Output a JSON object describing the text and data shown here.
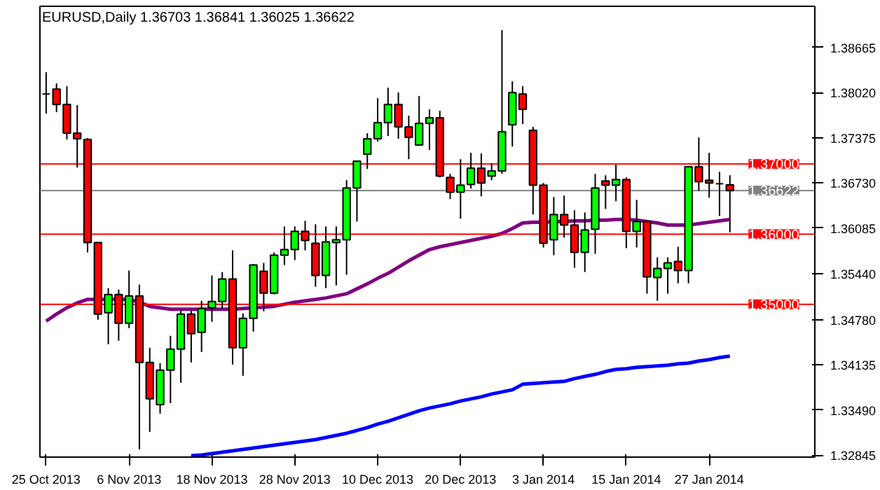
{
  "chart_data": {
    "type": "candlestick",
    "title": "EURUSD,Daily 1.36703 1.36841 1.36025 1.36622",
    "categories": [
      "25 Oct 2013",
      null,
      null,
      null,
      null,
      null,
      null,
      null,
      "6 Nov 2013",
      null,
      null,
      null,
      null,
      null,
      null,
      null,
      "18 Nov 2013",
      null,
      null,
      null,
      null,
      null,
      null,
      null,
      "28 Nov 2013",
      null,
      null,
      null,
      null,
      null,
      null,
      null,
      "10 Dec 2013",
      null,
      null,
      null,
      null,
      null,
      null,
      null,
      "20 Dec 2013",
      null,
      null,
      null,
      null,
      null,
      null,
      null,
      "3 Jan 2014",
      null,
      null,
      null,
      null,
      null,
      null,
      null,
      "15 Jan 2014",
      null,
      null,
      null,
      null,
      null,
      null,
      null,
      "27 Jan 2014",
      null,
      null
    ],
    "ohlc": [
      [
        1.38,
        1.3831,
        1.3772,
        1.38
      ],
      [
        1.3807,
        1.3815,
        1.3774,
        1.3785
      ],
      [
        1.3785,
        1.3811,
        1.3735,
        1.3744
      ],
      [
        1.3744,
        1.3784,
        1.3695,
        1.3736
      ],
      [
        1.3735,
        1.3737,
        1.3574,
        1.3588
      ],
      [
        1.3588,
        1.3588,
        1.3478,
        1.3486
      ],
      [
        1.3488,
        1.3523,
        1.3443,
        1.3514
      ],
      [
        1.3514,
        1.3521,
        1.3448,
        1.3473
      ],
      [
        1.3473,
        1.3548,
        1.3466,
        1.3512
      ],
      [
        1.3512,
        1.3528,
        1.3293,
        1.3417
      ],
      [
        1.3417,
        1.3438,
        1.3318,
        1.3365
      ],
      [
        1.3357,
        1.3416,
        1.3344,
        1.3406
      ],
      [
        1.3406,
        1.3455,
        1.3359,
        1.3436
      ],
      [
        1.3436,
        1.3492,
        1.3388,
        1.3486
      ],
      [
        1.3486,
        1.3491,
        1.3417,
        1.3458
      ],
      [
        1.346,
        1.3505,
        1.3432,
        1.3494
      ],
      [
        1.3495,
        1.3541,
        1.3475,
        1.3504
      ],
      [
        1.3504,
        1.3546,
        1.3494,
        1.3536
      ],
      [
        1.3536,
        1.3577,
        1.3414,
        1.3438
      ],
      [
        1.3438,
        1.3487,
        1.3398,
        1.348
      ],
      [
        1.348,
        1.3557,
        1.3461,
        1.3556
      ],
      [
        1.3547,
        1.3559,
        1.349,
        1.3516
      ],
      [
        1.3516,
        1.3574,
        1.3514,
        1.357
      ],
      [
        1.357,
        1.3611,
        1.3556,
        1.3578
      ],
      [
        1.3578,
        1.3611,
        1.3563,
        1.3604
      ],
      [
        1.3604,
        1.3619,
        1.3577,
        1.3591
      ],
      [
        1.3587,
        1.3614,
        1.3525,
        1.3541
      ],
      [
        1.3541,
        1.3611,
        1.3523,
        1.3589
      ],
      [
        1.3588,
        1.3611,
        1.3527,
        1.3592
      ],
      [
        1.3592,
        1.3677,
        1.3542,
        1.3666
      ],
      [
        1.3666,
        1.3704,
        1.3618,
        1.3704
      ],
      [
        1.3714,
        1.3744,
        1.3693,
        1.3736
      ],
      [
        1.3736,
        1.3794,
        1.3732,
        1.3759
      ],
      [
        1.3759,
        1.3809,
        1.374,
        1.3785
      ],
      [
        1.3785,
        1.3802,
        1.3736,
        1.3753
      ],
      [
        1.3753,
        1.3769,
        1.3707,
        1.3738
      ],
      [
        1.3727,
        1.3797,
        1.3727,
        1.3758
      ],
      [
        1.3758,
        1.3778,
        1.372,
        1.3766
      ],
      [
        1.3766,
        1.3776,
        1.3681,
        1.3683
      ],
      [
        1.3681,
        1.3686,
        1.365,
        1.366
      ],
      [
        1.366,
        1.3707,
        1.3622,
        1.367
      ],
      [
        1.3671,
        1.3716,
        1.3665,
        1.3694
      ],
      [
        1.3694,
        1.3715,
        1.3654,
        1.3673
      ],
      [
        1.3683,
        1.3701,
        1.3677,
        1.369
      ],
      [
        1.369,
        1.3891,
        1.3686,
        1.3746
      ],
      [
        1.3756,
        1.3818,
        1.3725,
        1.3802
      ],
      [
        1.38,
        1.3811,
        1.3757,
        1.3778
      ],
      [
        1.3748,
        1.3753,
        1.3628,
        1.367
      ],
      [
        1.367,
        1.3673,
        1.3581,
        1.3587
      ],
      [
        1.3592,
        1.3653,
        1.357,
        1.3628
      ],
      [
        1.3628,
        1.3655,
        1.3595,
        1.3613
      ],
      [
        1.3613,
        1.3634,
        1.3552,
        1.3574
      ],
      [
        1.3574,
        1.3631,
        1.3546,
        1.3606
      ],
      [
        1.3607,
        1.3686,
        1.3572,
        1.3666
      ],
      [
        1.3676,
        1.3684,
        1.3636,
        1.367
      ],
      [
        1.367,
        1.3699,
        1.3647,
        1.3678
      ],
      [
        1.3678,
        1.3681,
        1.358,
        1.3604
      ],
      [
        1.3604,
        1.3649,
        1.3581,
        1.3618
      ],
      [
        1.3618,
        1.3619,
        1.3515,
        1.3539
      ],
      [
        1.3538,
        1.3567,
        1.3505,
        1.3551
      ],
      [
        1.3551,
        1.3567,
        1.3515,
        1.3559
      ],
      [
        1.3561,
        1.3582,
        1.353,
        1.3548
      ],
      [
        1.3548,
        1.3696,
        1.353,
        1.3696
      ],
      [
        1.3696,
        1.3738,
        1.3662,
        1.3675
      ],
      [
        1.3677,
        1.3716,
        1.3652,
        1.3673
      ],
      [
        1.3672,
        1.3689,
        1.3626,
        1.3672
      ],
      [
        1.36703,
        1.36841,
        1.36025,
        1.36622
      ]
    ],
    "colors": [
      "#000000",
      "#ff0000",
      "#ff0000",
      "#ff0000",
      "#ff0000",
      "#ff0000",
      "#00ff00",
      "#ff0000",
      "#00ff00",
      "#ff0000",
      "#ff0000",
      "#00ff00",
      "#00ff00",
      "#00ff00",
      "#ff0000",
      "#00ff00",
      "#00ff00",
      "#00ff00",
      "#ff0000",
      "#00ff00",
      "#00ff00",
      "#ff0000",
      "#00ff00",
      "#00ff00",
      "#00ff00",
      "#ff0000",
      "#ff0000",
      "#00ff00",
      "#00ff00",
      "#00ff00",
      "#00ff00",
      "#00ff00",
      "#00ff00",
      "#00ff00",
      "#ff0000",
      "#ff0000",
      "#00ff00",
      "#00ff00",
      "#ff0000",
      "#ff0000",
      "#00ff00",
      "#00ff00",
      "#ff0000",
      "#00ff00",
      "#00ff00",
      "#00ff00",
      "#ff0000",
      "#ff0000",
      "#ff0000",
      "#00ff00",
      "#ff0000",
      "#ff0000",
      "#00ff00",
      "#00ff00",
      "#ff0000",
      "#00ff00",
      "#ff0000",
      "#00ff00",
      "#ff0000",
      "#00ff00",
      "#00ff00",
      "#ff0000",
      "#00ff00",
      "#ff0000",
      "#ff0000",
      "#000000",
      "#ff0000"
    ],
    "series": [
      {
        "type": "line",
        "color": "#800080",
        "values": [
          1.3476,
          1.3486,
          1.3495,
          1.3502,
          1.3507,
          1.3507,
          1.3507,
          1.3507,
          1.3507,
          1.3503,
          1.3497,
          1.3495,
          1.3493,
          1.3493,
          1.3493,
          1.3493,
          1.3493,
          1.3493,
          1.3493,
          1.3494,
          1.3495,
          1.3496,
          1.3497,
          1.35,
          1.3503,
          1.3505,
          1.3507,
          1.3509,
          1.3512,
          1.3515,
          1.3522,
          1.3529,
          1.3537,
          1.3544,
          1.3553,
          1.3562,
          1.357,
          1.3578,
          1.3582,
          1.3585,
          1.3588,
          1.3591,
          1.3594,
          1.3597,
          1.3601,
          1.3608,
          1.3616,
          1.3617,
          1.3617,
          1.3618,
          1.3618,
          1.3619,
          1.3619,
          1.362,
          1.362,
          1.3621,
          1.3621,
          1.362,
          1.3618,
          1.3616,
          1.3613,
          1.3613,
          1.3613,
          1.3615,
          1.3617,
          1.3619,
          1.3621
        ]
      },
      {
        "type": "line",
        "color": "#0000ff",
        "values": [
          null,
          null,
          null,
          null,
          null,
          null,
          null,
          null,
          null,
          null,
          null,
          null,
          null,
          null,
          1.3284,
          1.3285,
          1.3287,
          1.3289,
          1.3291,
          1.3293,
          1.3295,
          1.3297,
          1.3299,
          1.3301,
          1.3303,
          1.3305,
          1.3307,
          1.331,
          1.3313,
          1.3316,
          1.332,
          1.3324,
          1.3329,
          1.3333,
          1.3338,
          1.3343,
          1.3348,
          1.3352,
          1.3355,
          1.3358,
          1.3362,
          1.3365,
          1.3368,
          1.3372,
          1.3375,
          1.3378,
          1.3386,
          1.3387,
          1.3388,
          1.3389,
          1.339,
          1.3394,
          1.3397,
          1.34,
          1.3404,
          1.3407,
          1.3408,
          1.341,
          1.3411,
          1.3412,
          1.3413,
          1.3415,
          1.3416,
          1.3419,
          1.3421,
          1.3424,
          1.3426
        ]
      }
    ],
    "ylim": [
      1.3282,
      1.3925
    ],
    "yticks": [
      1.38665,
      {
        "value": 1.3802,
        "label": "1.38020"
      },
      1.37375,
      {
        "value": 1.3673,
        "label": "1.36730"
      },
      1.36085,
      {
        "value": 1.3544,
        "label": "1.35440"
      },
      {
        "value": 1.3478,
        "label": "1.34780"
      },
      1.34135,
      {
        "value": 1.3349,
        "label": "1.33490"
      },
      1.32845
    ],
    "ref_lines": [
      {
        "axis": "y",
        "value": 1.37,
        "label": "1.37000",
        "color": "#ff0000"
      },
      {
        "axis": "y",
        "value": 1.36622,
        "label": "1.36622",
        "color": "#808080"
      },
      {
        "axis": "y",
        "value": 1.36,
        "label": "1.36000",
        "color": "#ff0000"
      },
      {
        "axis": "y",
        "value": 1.35,
        "label": "1.35000",
        "color": "#ff0000"
      }
    ],
    "grid": false
  }
}
